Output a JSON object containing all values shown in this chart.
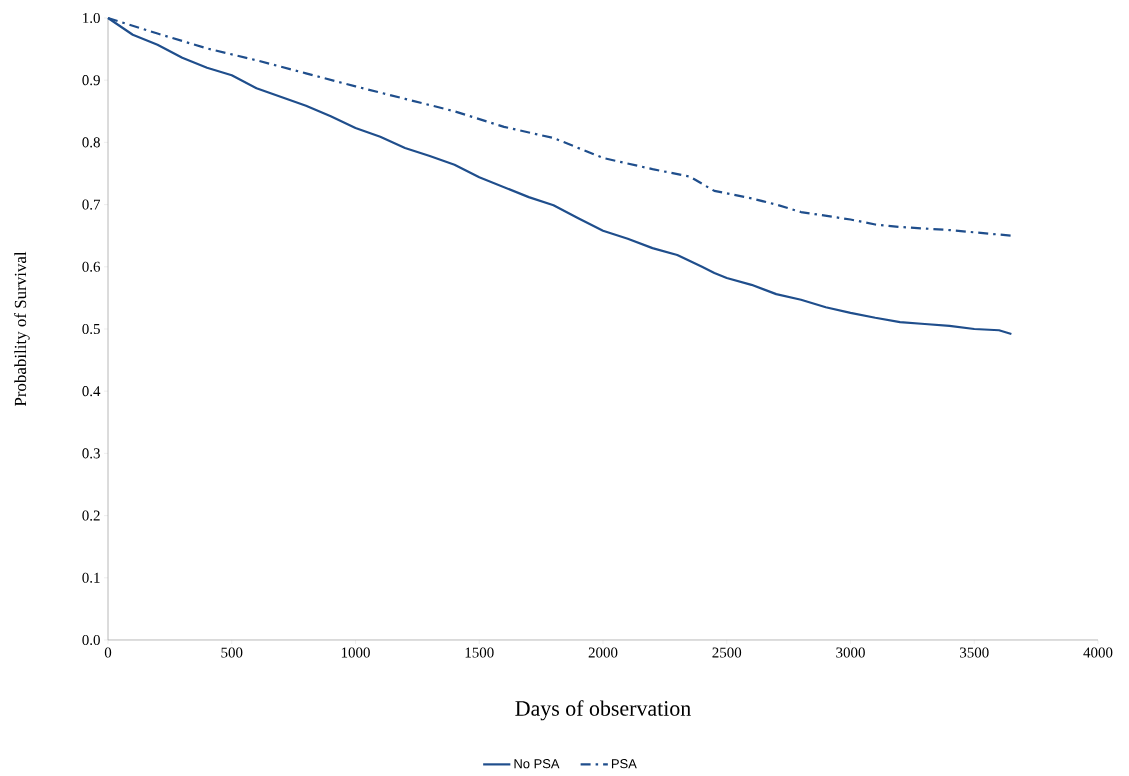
{
  "chart_data": {
    "type": "line",
    "xlabel": "Days of observation",
    "ylabel": "Probability of Survival",
    "xlim": [
      0,
      4000
    ],
    "xticks": [
      0,
      500,
      1000,
      1500,
      2000,
      2500,
      3000,
      3500,
      4000
    ],
    "ylim": [
      0,
      1.0
    ],
    "yticks": [
      {
        "value": 0,
        "label": "0.0"
      },
      {
        "value": 0.1,
        "label": "0.1"
      },
      {
        "value": 0.2,
        "label": "0.2"
      },
      {
        "value": 0.3,
        "label": "0.3"
      },
      {
        "value": 0.4,
        "label": "0.4"
      },
      {
        "value": 0.5,
        "label": "0.5"
      },
      {
        "value": 0.6,
        "label": "0.6"
      },
      {
        "value": 0.7,
        "label": "0.7"
      },
      {
        "value": 0.8,
        "label": "0.8"
      },
      {
        "value": 0.9,
        "label": "0.9"
      },
      {
        "value": 1.0,
        "label": "1.0"
      }
    ],
    "grid": false,
    "legend": "bottom",
    "marker": "none",
    "series": [
      {
        "name": "No PSA",
        "color": "#1f4e8c",
        "line_style": "solid",
        "x": [
          0,
          100,
          200,
          300,
          400,
          500,
          600,
          700,
          800,
          900,
          1000,
          1100,
          1200,
          1300,
          1400,
          1500,
          1600,
          1700,
          1800,
          1900,
          2000,
          2100,
          2200,
          2300,
          2400,
          2450,
          2500,
          2600,
          2700,
          2800,
          2900,
          3000,
          3100,
          3200,
          3300,
          3400,
          3500,
          3600,
          3650
        ],
        "values": [
          1.0,
          0.973,
          0.957,
          0.936,
          0.92,
          0.908,
          0.887,
          0.873,
          0.859,
          0.842,
          0.823,
          0.809,
          0.791,
          0.778,
          0.764,
          0.744,
          0.728,
          0.712,
          0.699,
          0.678,
          0.658,
          0.645,
          0.63,
          0.619,
          0.6,
          0.59,
          0.582,
          0.571,
          0.556,
          0.547,
          0.535,
          0.526,
          0.518,
          0.511,
          0.508,
          0.505,
          0.5,
          0.498,
          0.492
        ]
      },
      {
        "name": "PSA",
        "color": "#1f4e8c",
        "line_style": "dashdot",
        "x": [
          0,
          200,
          400,
          600,
          800,
          1000,
          1200,
          1400,
          1600,
          1800,
          2000,
          2200,
          2350,
          2450,
          2600,
          2700,
          2800,
          3000,
          3100,
          3200,
          3400,
          3650
        ],
        "values": [
          1.0,
          0.975,
          0.951,
          0.932,
          0.911,
          0.89,
          0.87,
          0.85,
          0.825,
          0.807,
          0.775,
          0.757,
          0.745,
          0.722,
          0.71,
          0.7,
          0.688,
          0.676,
          0.668,
          0.664,
          0.659,
          0.65
        ]
      }
    ]
  }
}
